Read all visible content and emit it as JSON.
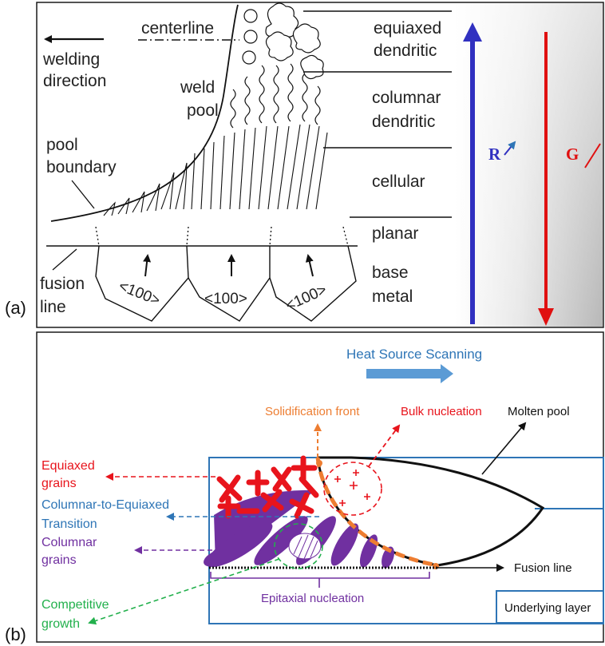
{
  "panel_a": {
    "label": "(a)",
    "welding_direction": [
      "welding",
      "direction"
    ],
    "centerline": "centerline",
    "weld_pool": [
      "weld",
      "pool"
    ],
    "pool_boundary": [
      "pool",
      "boundary"
    ],
    "fusion_line": [
      "fusion",
      "line"
    ],
    "orientation": "<100>",
    "zones": {
      "equiaxed": [
        "equiaxed",
        "dendritic"
      ],
      "columnar": [
        "columnar",
        "dendritic"
      ],
      "cellular": "cellular",
      "planar": "planar",
      "base_metal": [
        "base",
        "metal"
      ]
    },
    "arrow_R": "R",
    "arrow_G": "G",
    "colors": {
      "R_arrow": "#3030c0",
      "G_arrow": "#e01010"
    }
  },
  "panel_b": {
    "label": "(b)",
    "heat_source": "Heat Source Scanning",
    "solidification_front": "Solidification front",
    "bulk_nucleation": "Bulk nucleation",
    "molten_pool": "Molten pool",
    "equiaxed_grains": [
      "Equiaxed",
      "grains"
    ],
    "cet": [
      "Columnar-to-Equiaxed",
      "Transition"
    ],
    "columnar_grains": [
      "Columnar",
      "grains"
    ],
    "competitive_growth": [
      "Competitive",
      "growth"
    ],
    "fusion_line": "Fusion line",
    "epitaxial_nucleation": "Epitaxial nucleation",
    "underlying_layer": "Underlying layer",
    "colors": {
      "border": "#2e75b6",
      "equiaxed": "#e8141c",
      "cet": "#2e75b6",
      "columnar": "#7030a0",
      "competitive": "#22b04c",
      "front": "#ed7d31",
      "heat": "#2e75b6"
    }
  }
}
